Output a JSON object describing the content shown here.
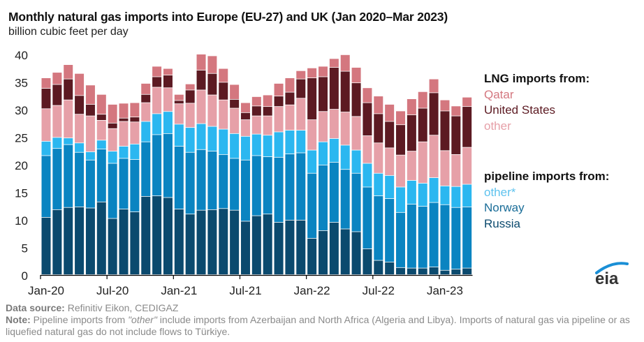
{
  "header": {
    "title": "Monthly natural gas imports into Europe (EU-27) and UK (Jan 2020–Mar 2023)",
    "subtitle": "billion cubic feet per day"
  },
  "legend": {
    "lng_heading": "LNG imports from:",
    "lng_items": [
      {
        "label": "Qatar",
        "color": "#d4777f"
      },
      {
        "label": "United States",
        "color": "#5c1a22"
      },
      {
        "label": "other",
        "color": "#e6a0a8"
      }
    ],
    "pipeline_heading": "pipeline imports from:",
    "pipeline_items": [
      {
        "label": "other*",
        "color": "#2bb7f0"
      },
      {
        "label": "Norway",
        "color": "#0a84c1"
      },
      {
        "label": "Russia",
        "color": "#0b4a6e"
      }
    ]
  },
  "footer": {
    "source_label": "Data source:",
    "source_text": " Refinitiv Eikon, CEDIGAZ",
    "note_label": "Note:",
    "note_text_1": " Pipeline imports from ",
    "note_italic": "\"other\"",
    "note_text_2": " include imports from Azerbaijan and North Africa (Algeria and Libya). Imports of natural gas via pipeline or as liquefied natural gas do not include flows to Türkiye."
  },
  "logo": {
    "text": "eia",
    "arc_color": "#1a8fd6"
  },
  "chart_data": {
    "type": "bar",
    "stacked": true,
    "title": "Monthly natural gas imports into Europe (EU-27) and UK (Jan 2020–Mar 2023)",
    "ylabel": "billion cubic feet per day",
    "xlabel": "",
    "ylim": [
      0,
      40
    ],
    "yticks": [
      0,
      5,
      10,
      15,
      20,
      25,
      30,
      35,
      40
    ],
    "grid": false,
    "legend_position": "right",
    "xtick_labels": [
      {
        "index": 0,
        "label": "Jan-20"
      },
      {
        "index": 6,
        "label": "Jul-20"
      },
      {
        "index": 12,
        "label": "Jan-21"
      },
      {
        "index": 18,
        "label": "Jul-21"
      },
      {
        "index": 24,
        "label": "Jan-22"
      },
      {
        "index": 30,
        "label": "Jul-22"
      },
      {
        "index": 36,
        "label": "Jan-23"
      }
    ],
    "categories": [
      "Jan-20",
      "Feb-20",
      "Mar-20",
      "Apr-20",
      "May-20",
      "Jun-20",
      "Jul-20",
      "Aug-20",
      "Sep-20",
      "Oct-20",
      "Nov-20",
      "Dec-20",
      "Jan-21",
      "Feb-21",
      "Mar-21",
      "Apr-21",
      "May-21",
      "Jun-21",
      "Jul-21",
      "Aug-21",
      "Sep-21",
      "Oct-21",
      "Nov-21",
      "Dec-21",
      "Jan-22",
      "Feb-22",
      "Mar-22",
      "Apr-22",
      "May-22",
      "Jun-22",
      "Jul-22",
      "Aug-22",
      "Sep-22",
      "Oct-22",
      "Nov-22",
      "Dec-22",
      "Jan-23",
      "Feb-23",
      "Mar-23"
    ],
    "series": [
      {
        "name": "pipeline: Russia",
        "color": "#0b4a6e",
        "values": [
          10.4,
          11.8,
          12.2,
          12.3,
          12.1,
          13.2,
          10.2,
          11.9,
          11.4,
          14.2,
          14.3,
          14.0,
          11.9,
          11.0,
          11.7,
          11.8,
          12.0,
          11.7,
          9.7,
          10.7,
          11.0,
          9.5,
          9.9,
          9.9,
          6.6,
          8.0,
          9.5,
          8.3,
          7.8,
          4.7,
          2.6,
          2.3,
          1.3,
          1.2,
          1.2,
          1.4,
          0.8,
          1.0,
          1.2
        ]
      },
      {
        "name": "pipeline: Norway",
        "color": "#0a84c1",
        "values": [
          11.2,
          11.1,
          11.4,
          9.9,
          8.7,
          9.6,
          10.0,
          9.2,
          9.5,
          9.9,
          11.1,
          11.6,
          11.4,
          11.2,
          11.0,
          10.6,
          9.8,
          9.4,
          11.1,
          10.9,
          10.4,
          11.8,
          12.0,
          12.2,
          11.8,
          11.9,
          10.9,
          10.8,
          10.6,
          11.2,
          11.7,
          11.5,
          10.0,
          11.6,
          11.2,
          11.7,
          11.9,
          11.2,
          11.1
        ]
      },
      {
        "name": "pipeline: other*",
        "color": "#2bb7f0",
        "values": [
          2.6,
          2.0,
          1.2,
          1.7,
          1.5,
          1.6,
          2.2,
          2.2,
          2.8,
          3.7,
          3.8,
          4.0,
          4.0,
          4.5,
          4.7,
          4.5,
          4.6,
          4.5,
          4.3,
          3.9,
          3.9,
          4.6,
          4.3,
          4.1,
          4.2,
          4.2,
          4.3,
          4.4,
          4.2,
          4.3,
          4.1,
          4.2,
          4.6,
          4.3,
          4.2,
          4.5,
          3.4,
          3.8,
          4.1
        ]
      },
      {
        "name": "LNG: other",
        "color": "#e6a0a8",
        "values": [
          5.9,
          5.8,
          6.9,
          5.2,
          6.5,
          3.6,
          4.1,
          4.5,
          4.0,
          3.4,
          4.8,
          4.3,
          3.7,
          4.4,
          6.1,
          5.7,
          5.3,
          4.6,
          3.0,
          3.3,
          3.5,
          4.6,
          4.6,
          5.8,
          5.5,
          5.5,
          5.3,
          6.0,
          6.1,
          5.0,
          5.5,
          5.0,
          5.8,
          5.3,
          7.5,
          7.7,
          6.4,
          5.8,
          6.7
        ]
      },
      {
        "name": "LNG: United States",
        "color": "#5c1a22",
        "values": [
          3.7,
          3.8,
          3.8,
          3.4,
          2.1,
          1.1,
          1.0,
          0.6,
          0.9,
          1.5,
          1.9,
          2.3,
          0.6,
          2.4,
          3.6,
          3.9,
          3.2,
          1.6,
          1.3,
          1.8,
          1.7,
          1.9,
          2.3,
          3.5,
          7.6,
          6.3,
          7.6,
          7.4,
          6.1,
          6.0,
          5.3,
          4.8,
          5.5,
          6.6,
          6.1,
          7.7,
          7.2,
          7.0,
          7.4
        ]
      },
      {
        "name": "LNG: Qatar",
        "color": "#d4777f",
        "values": [
          1.9,
          2.2,
          2.6,
          4.0,
          3.5,
          3.6,
          3.4,
          2.7,
          2.6,
          2.0,
          1.9,
          1.2,
          1.1,
          1.1,
          2.9,
          3.2,
          2.5,
          2.7,
          1.8,
          1.7,
          2.1,
          2.3,
          2.6,
          1.5,
          1.8,
          1.9,
          1.6,
          3.0,
          2.8,
          2.7,
          3.2,
          3.1,
          2.5,
          2.9,
          3.0,
          2.5,
          2.0,
          1.8,
          1.7
        ]
      }
    ]
  }
}
